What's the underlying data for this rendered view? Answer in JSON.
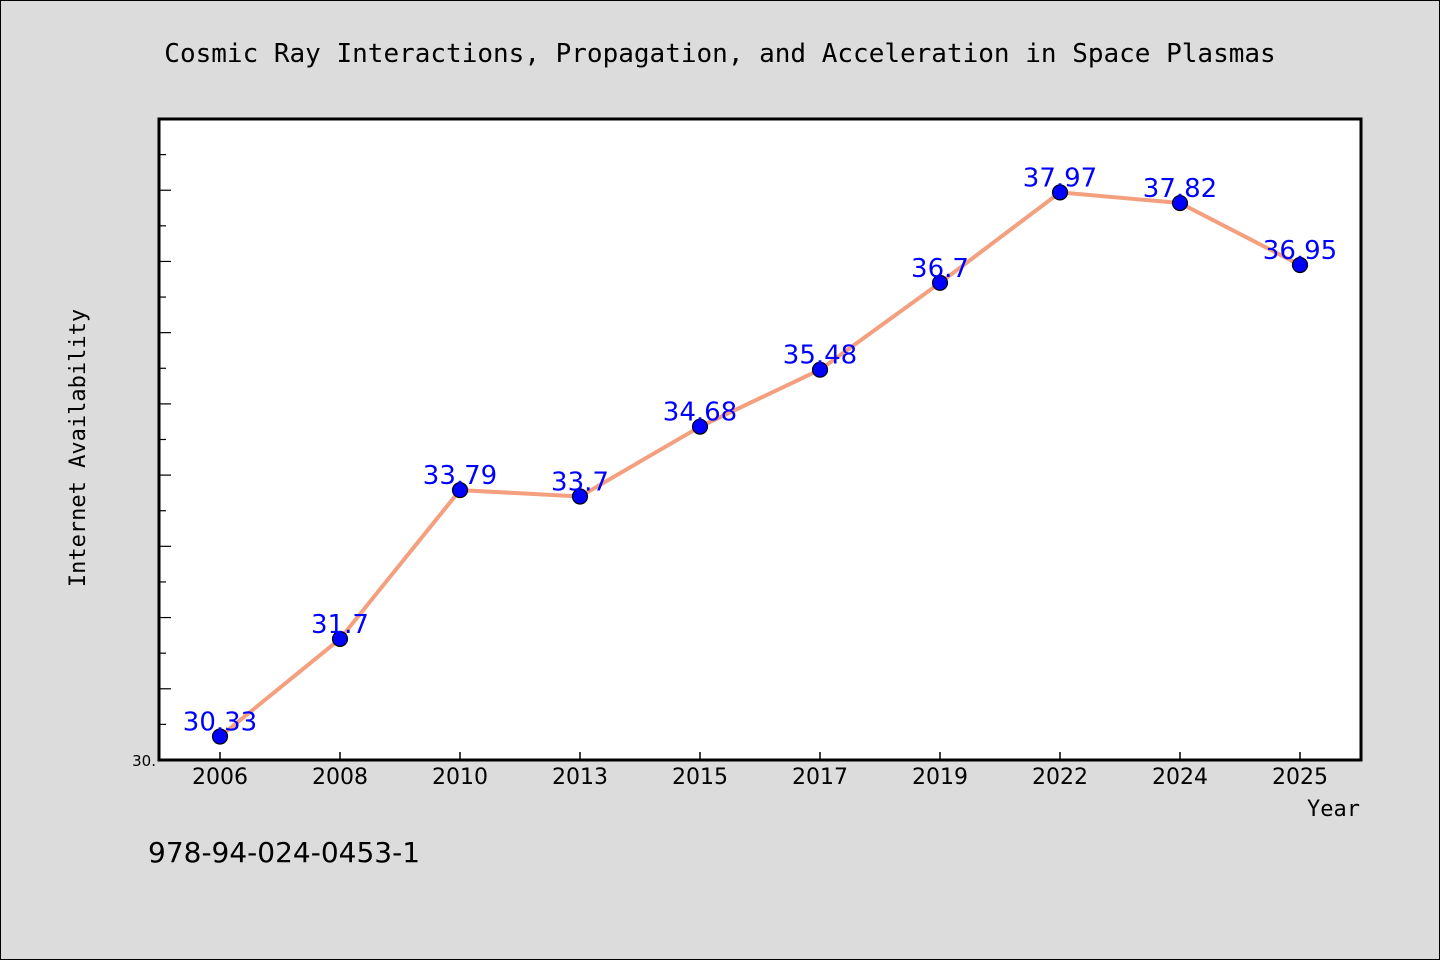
{
  "chart_data": {
    "type": "line",
    "title": "Cosmic Ray Interactions, Propagation, and Acceleration in Space Plasmas",
    "xlabel": "Year",
    "ylabel": "Internet Availability",
    "categories": [
      "2006",
      "2008",
      "2010",
      "2013",
      "2015",
      "2017",
      "2019",
      "2022",
      "2024",
      "2025"
    ],
    "series": [
      {
        "values": [
          30.33,
          31.7,
          33.79,
          33.7,
          34.68,
          35.48,
          36.7,
          37.97,
          37.82,
          36.95
        ],
        "data_labels": [
          "30.33",
          "31.7",
          "33.79",
          "33.7",
          "34.68",
          "35.48",
          "36.7",
          "37.97",
          "37.82",
          "36.95"
        ]
      }
    ],
    "ytick_labels": [
      "30."
    ],
    "ylim": [
      30.0,
      39.0
    ],
    "grid": false,
    "colors": {
      "line": "#f4a07f",
      "marker": "#0000ff",
      "label": "#0000ff",
      "background": "#dcdcdc",
      "plot_background": "#ffffff"
    }
  },
  "footnote": "978-94-024-0453-1"
}
